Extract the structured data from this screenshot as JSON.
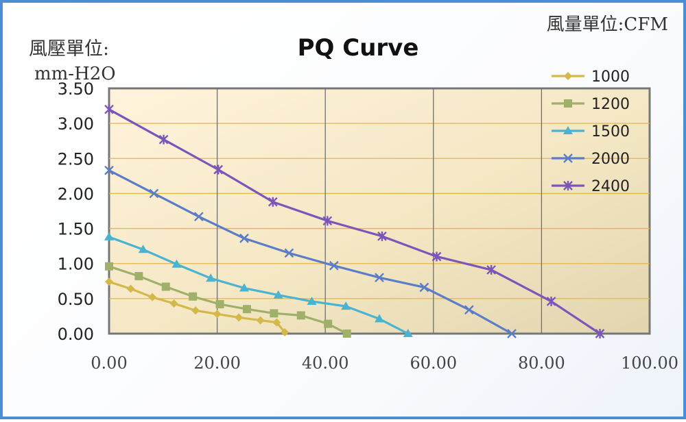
{
  "chart_data": {
    "type": "line",
    "title": "PQ Curve",
    "ylabel_line1": "風壓單位:",
    "ylabel_line2": "mm-H2O",
    "xlabel": "風量單位:CFM",
    "xlim": [
      0,
      100
    ],
    "ylim": [
      0,
      3.5
    ],
    "xticks": [
      "0.00",
      "20.00",
      "40.00",
      "60.00",
      "80.00",
      "100.00"
    ],
    "yticks": [
      "0.00",
      "0.50",
      "1.00",
      "1.50",
      "2.00",
      "2.50",
      "3.00",
      "3.50"
    ],
    "grid": "vertical and horizontal",
    "legend_position": "top-right",
    "series": [
      {
        "name": "1000",
        "color": "#d4b84a",
        "marker": "diamond",
        "x": [
          0,
          4,
          8,
          12,
          16,
          20,
          24,
          28,
          31,
          32.5
        ],
        "y": [
          0.74,
          0.64,
          0.52,
          0.43,
          0.33,
          0.28,
          0.23,
          0.19,
          0.16,
          0.02
        ]
      },
      {
        "name": "1200",
        "color": "#9fb06a",
        "marker": "square",
        "x": [
          0,
          5.5,
          10.5,
          15.5,
          20.5,
          25.5,
          30.5,
          35.5,
          40.5,
          44
        ],
        "y": [
          0.96,
          0.82,
          0.67,
          0.53,
          0.42,
          0.35,
          0.29,
          0.26,
          0.14,
          0.0
        ]
      },
      {
        "name": "1500",
        "color": "#49b3d0",
        "marker": "triangle",
        "x": [
          0,
          6.3,
          12.5,
          18.8,
          25,
          31.3,
          37.5,
          43.8,
          50,
          55.3
        ],
        "y": [
          1.38,
          1.2,
          0.99,
          0.79,
          0.65,
          0.55,
          0.46,
          0.39,
          0.21,
          0.0
        ]
      },
      {
        "name": "2000",
        "color": "#5b7cc6",
        "marker": "x",
        "x": [
          0,
          8.3,
          16.6,
          25,
          33.3,
          41.6,
          50,
          58.3,
          66.6,
          74.5
        ],
        "y": [
          2.33,
          2.0,
          1.67,
          1.36,
          1.15,
          0.97,
          0.8,
          0.66,
          0.34,
          0.0
        ]
      },
      {
        "name": "2400",
        "color": "#7c55b8",
        "marker": "star",
        "x": [
          0,
          10.1,
          20.2,
          30.3,
          40.4,
          50.5,
          60.6,
          70.7,
          81.8,
          90.8
        ],
        "y": [
          3.2,
          2.77,
          2.34,
          1.88,
          1.61,
          1.39,
          1.1,
          0.91,
          0.46,
          0.0
        ]
      }
    ]
  }
}
